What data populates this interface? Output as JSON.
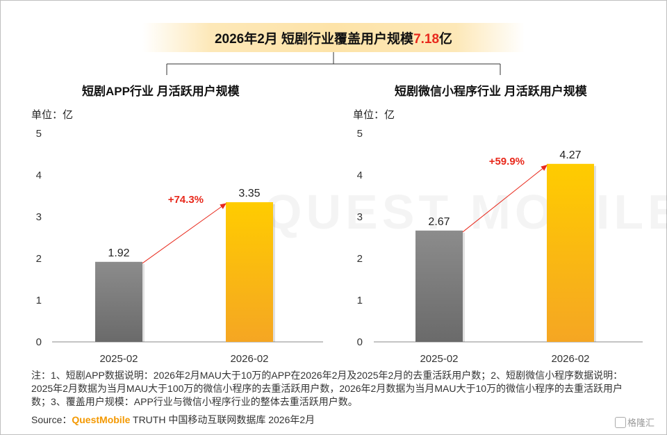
{
  "banner": {
    "prefix": "2026年2月 短剧行业覆盖用户规模",
    "value": "7.18",
    "suffix": "亿"
  },
  "watermark": "QUEST MOBILE",
  "chart_data": [
    {
      "type": "bar",
      "title": "短剧APP行业 月活跃用户规模",
      "unit": "单位：亿",
      "categories": [
        "2025-02",
        "2026-02"
      ],
      "values": [
        1.92,
        3.35
      ],
      "value_labels": [
        "1.92",
        "3.35"
      ],
      "yticks": [
        "0",
        "1",
        "2",
        "3",
        "4",
        "5"
      ],
      "ylim": [
        0,
        5
      ],
      "growth": "+74.3%",
      "colors": [
        "#7a7a7a",
        "#f7b500"
      ]
    },
    {
      "type": "bar",
      "title": "短剧微信小程序行业 月活跃用户规模",
      "unit": "单位：亿",
      "categories": [
        "2025-02",
        "2026-02"
      ],
      "values": [
        2.67,
        4.27
      ],
      "value_labels": [
        "2.67",
        "4.27"
      ],
      "yticks": [
        "0",
        "1",
        "2",
        "3",
        "4",
        "5"
      ],
      "ylim": [
        0,
        5
      ],
      "growth": "+59.9%",
      "colors": [
        "#7a7a7a",
        "#f7b500"
      ]
    }
  ],
  "notes": "注：1、短剧APP数据说明：2026年2月MAU大于10万的APP在2026年2月及2025年2月的去重活跃用户数；2、短剧微信小程序数据说明：2025年2月数据为当月MAU大于100万的微信小程序的去重活跃用户数，2026年2月数据为当月MAU大于10万的微信小程序的去重活跃用户数；3、覆盖用户规模：APP行业与微信小程序行业的整体去重活跃用户数。",
  "source": {
    "label": "Source：",
    "brand": "QuestMobile",
    "rest": " TRUTH 中国移动互联网数据库 2026年2月"
  },
  "logo": "格隆汇"
}
